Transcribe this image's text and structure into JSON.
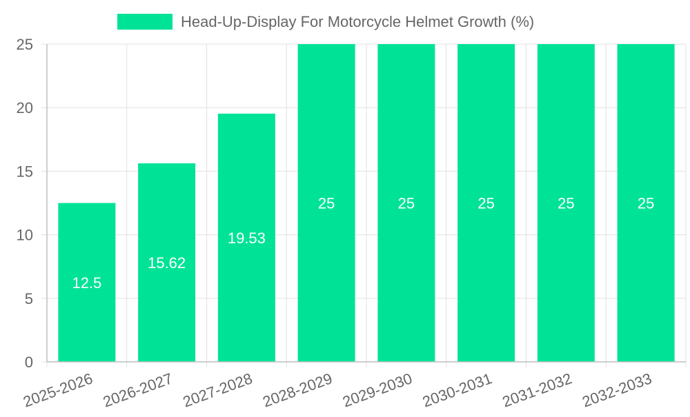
{
  "chart_data": {
    "type": "bar",
    "title": "",
    "xlabel": "",
    "ylabel": "",
    "categories": [
      "2025-2026",
      "2026-2027",
      "2027-2028",
      "2028-2029",
      "2029-2030",
      "2030-2031",
      "2031-2032",
      "2032-2033"
    ],
    "series": [
      {
        "name": "Head-Up-Display For Motorcycle Helmet Growth (%)",
        "values": [
          12.5,
          15.62,
          19.53,
          25,
          25,
          25,
          25,
          25
        ],
        "color": "#00e396"
      }
    ],
    "data_labels": [
      "12.5",
      "15.62",
      "19.53",
      "25",
      "25",
      "25",
      "25",
      "25"
    ],
    "ylim": [
      0,
      25
    ],
    "y_ticks": [
      0,
      5,
      10,
      15,
      20,
      25
    ],
    "grid": true,
    "legend_position": "top-center"
  }
}
